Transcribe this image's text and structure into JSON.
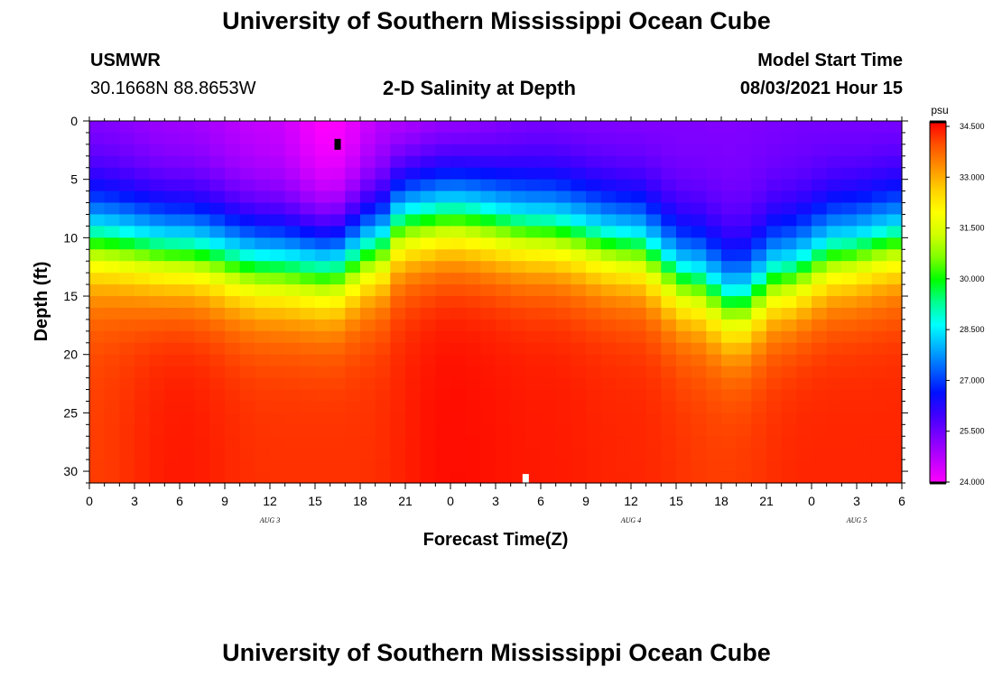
{
  "header": {
    "title": "University of Southern Mississippi Ocean Cube",
    "station_id": "USMWR",
    "coordinates": "30.1668N  88.8653W",
    "subtitle": "2-D Salinity at Depth",
    "model_start_label": "Model Start Time",
    "model_start_value": "08/03/2021 Hour 15"
  },
  "footer": {
    "title": "University of Southern Mississippi Ocean Cube"
  },
  "colors": {
    "palette": [
      "#ff00ff",
      "#c000ff",
      "#8000ff",
      "#4000ff",
      "#0010ff",
      "#0060ff",
      "#00b0ff",
      "#00ffff",
      "#00ff90",
      "#00ff00",
      "#80ff00",
      "#d0ff00",
      "#ffff00",
      "#ffd000",
      "#ff9000",
      "#ff5000",
      "#ff0000"
    ]
  },
  "chart_data": {
    "type": "heatmap",
    "title": "2-D Salinity at Depth",
    "xlabel": "Forecast Time(Z)",
    "ylabel": "Depth (ft)",
    "x_range_hours": [
      0,
      54
    ],
    "ylim": [
      0,
      31
    ],
    "x_tick_labels": [
      "0",
      "3",
      "6",
      "9",
      "12",
      "15",
      "18",
      "21",
      "0",
      "3",
      "6",
      "9",
      "12",
      "15",
      "18",
      "21",
      "0",
      "3",
      "6"
    ],
    "y_ticks": [
      0,
      5,
      10,
      15,
      20,
      25,
      30
    ],
    "date_labels": [
      {
        "label": "AUG 3",
        "hour": 12
      },
      {
        "label": "AUG 4",
        "hour": 36
      },
      {
        "label": "AUG 5",
        "hour": 51
      }
    ],
    "colorbar": {
      "units": "psu",
      "min": 24.0,
      "max": 34.5,
      "tick_labels": [
        "34.500",
        "33.000",
        "31.500",
        "30.000",
        "28.500",
        "27.000",
        "25.500",
        "24.000"
      ]
    },
    "markers": [
      {
        "name": "surface-marker",
        "hour": 16.5,
        "depth": 2.0,
        "color": "#000000"
      },
      {
        "name": "bottom-marker",
        "hour": 29,
        "depth": 30.7,
        "color": "#ffffff"
      }
    ],
    "salinity_model": {
      "surface_psu": [
        {
          "hour": 0,
          "psu": 25.3
        },
        {
          "hour": 6,
          "psu": 25.0
        },
        {
          "hour": 12,
          "psu": 24.6
        },
        {
          "hour": 16,
          "psu": 24.0
        },
        {
          "hour": 20,
          "psu": 24.8
        },
        {
          "hour": 24,
          "psu": 25.1
        },
        {
          "hour": 30,
          "psu": 25.4
        },
        {
          "hour": 36,
          "psu": 25.3
        },
        {
          "hour": 42,
          "psu": 25.3
        },
        {
          "hour": 48,
          "psu": 25.4
        },
        {
          "hour": 54,
          "psu": 25.4
        }
      ],
      "deep_psu": [
        {
          "hour": 0,
          "psu": 34.0
        },
        {
          "hour": 6,
          "psu": 34.3
        },
        {
          "hour": 12,
          "psu": 34.1
        },
        {
          "hour": 18,
          "psu": 34.1
        },
        {
          "hour": 24,
          "psu": 34.4
        },
        {
          "hour": 30,
          "psu": 34.3
        },
        {
          "hour": 36,
          "psu": 34.2
        },
        {
          "hour": 42,
          "psu": 34.0
        },
        {
          "hour": 48,
          "psu": 34.2
        },
        {
          "hour": 54,
          "psu": 34.2
        }
      ],
      "cyan_isohaline_depth_ft": [
        {
          "hour": 0,
          "depth": 9.0
        },
        {
          "hour": 6,
          "depth": 10.0
        },
        {
          "hour": 12,
          "depth": 11.5
        },
        {
          "hour": 16,
          "depth": 12.0
        },
        {
          "hour": 19,
          "depth": 10.0
        },
        {
          "hour": 21,
          "depth": 7.5
        },
        {
          "hour": 24,
          "depth": 7.0
        },
        {
          "hour": 30,
          "depth": 8.0
        },
        {
          "hour": 36,
          "depth": 9.5
        },
        {
          "hour": 40,
          "depth": 12.5
        },
        {
          "hour": 43,
          "depth": 14.5
        },
        {
          "hour": 46,
          "depth": 12.0
        },
        {
          "hour": 50,
          "depth": 10.0
        },
        {
          "hour": 54,
          "depth": 9.0
        }
      ],
      "halocline_width_ft": 5.0
    }
  }
}
